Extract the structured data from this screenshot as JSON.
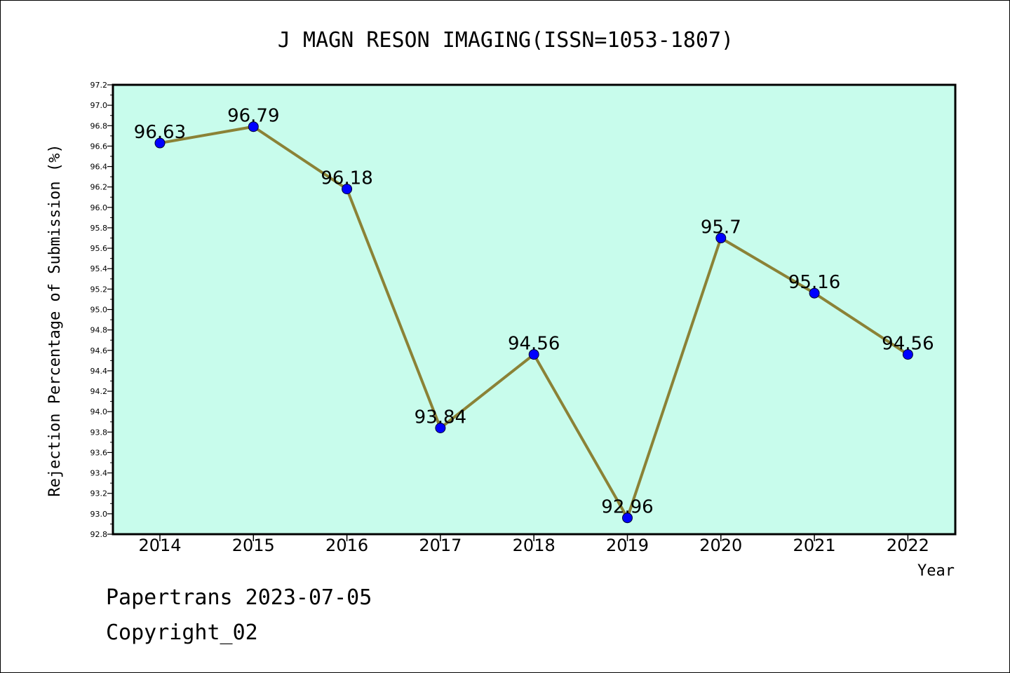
{
  "chart_data": {
    "type": "line",
    "title": "J MAGN RESON IMAGING(ISSN=1053-1807)",
    "xlabel": "Year",
    "ylabel": "Rejection Percentage of Submission (%)",
    "categories": [
      "2014",
      "2015",
      "2016",
      "2017",
      "2018",
      "2019",
      "2020",
      "2021",
      "2022"
    ],
    "values": [
      96.63,
      96.79,
      96.18,
      93.84,
      94.56,
      92.96,
      95.7,
      95.16,
      94.56
    ],
    "data_labels": [
      "96.63",
      "96.79",
      "96.18",
      "93.84",
      "94.56",
      "92.96",
      "95.7",
      "95.16",
      "94.56"
    ],
    "ylim": [
      92.8,
      97.2
    ],
    "yticks": [
      "92.8",
      "93.0",
      "93.2",
      "93.4",
      "93.6",
      "93.8",
      "94.0",
      "94.2",
      "94.4",
      "94.6",
      "94.8",
      "95.0",
      "95.2",
      "95.4",
      "95.6",
      "95.8",
      "96.0",
      "96.2",
      "96.4",
      "96.6",
      "96.8",
      "97.0",
      "97.2"
    ],
    "grid": false,
    "colors": {
      "plot_background": "#c8fcec",
      "line": "#8b8236",
      "marker": "#0000ff"
    }
  },
  "footer": {
    "line1": "Papertrans 2023-07-05",
    "line2": "Copyright_02"
  }
}
